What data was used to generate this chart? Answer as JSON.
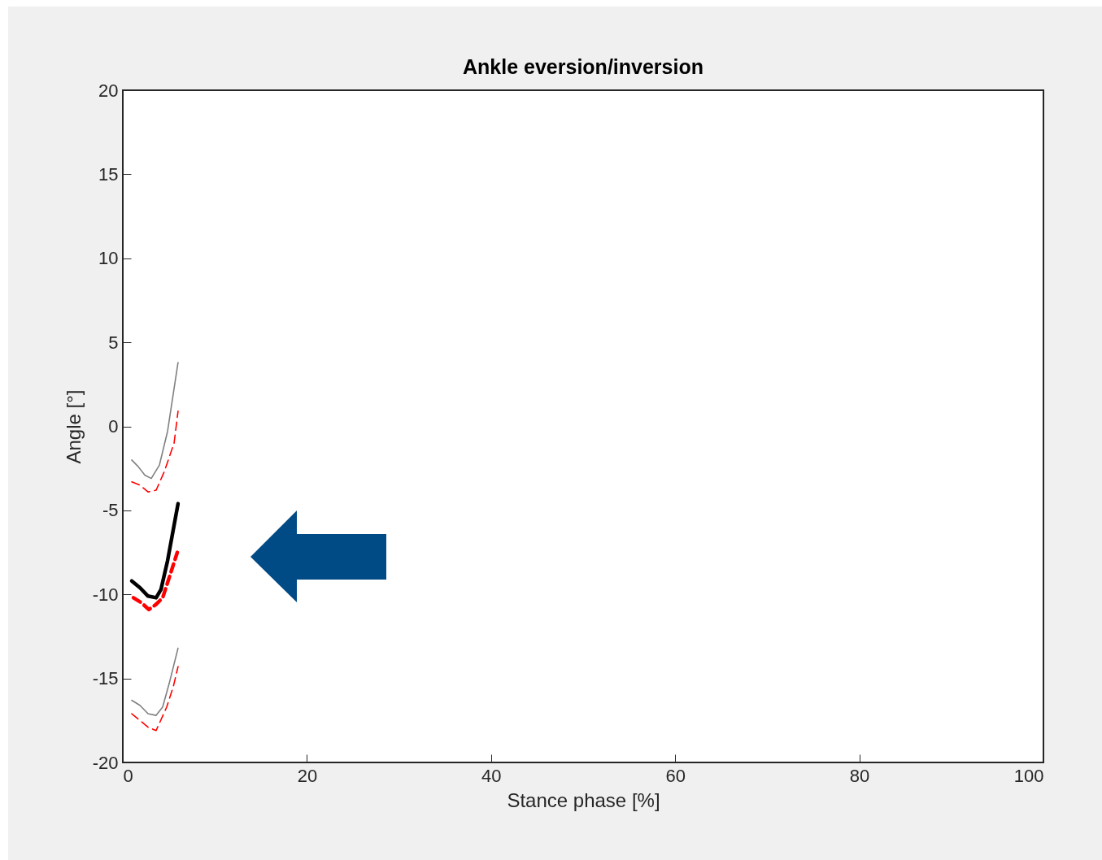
{
  "chart_data": {
    "type": "line",
    "title": "Ankle eversion/inversion",
    "xlabel": "Stance phase [%]",
    "ylabel": "Angle [°]",
    "xlim": [
      0,
      100
    ],
    "xticks": [
      0,
      20,
      40,
      60,
      80,
      100
    ],
    "ylim": [
      -20,
      20
    ],
    "yticks": [
      -20,
      -15,
      -10,
      -5,
      0,
      5,
      10,
      15,
      20
    ],
    "grid": false,
    "marker": "none",
    "series": [
      {
        "color": "#808080",
        "line_style": "solid",
        "x": [
          0.97,
          1.68,
          2.39,
          3.09,
          3.98,
          4.86,
          6.0
        ],
        "values": [
          -2.0,
          -2.4,
          -2.9,
          -3.1,
          -2.3,
          -0.3,
          3.8
        ]
      },
      {
        "color": "#ff0000",
        "line_style": "dashed",
        "x": [
          0.97,
          1.86,
          2.74,
          3.62,
          4.5,
          5.57,
          6.0
        ],
        "values": [
          -3.3,
          -3.5,
          -3.9,
          -3.8,
          -2.7,
          -1.0,
          0.9
        ]
      },
      {
        "color": "#000000",
        "line_style": "solid",
        "x": [
          0.97,
          1.86,
          2.74,
          3.62,
          4.15,
          4.86,
          6.0
        ],
        "values": [
          -9.2,
          -9.6,
          -10.1,
          -10.2,
          -9.7,
          -8.0,
          -4.6
        ]
      },
      {
        "color": "#ff0000",
        "line_style": "dashed",
        "x": [
          1.15,
          2.03,
          2.83,
          3.6,
          4.33,
          5.04,
          5.92
        ],
        "values": [
          -10.2,
          -10.5,
          -10.9,
          -10.6,
          -10.2,
          -9.0,
          -7.5
        ]
      },
      {
        "color": "#808080",
        "line_style": "solid",
        "x": [
          0.97,
          1.86,
          2.74,
          3.62,
          4.33,
          5.04,
          6.0
        ],
        "values": [
          -16.3,
          -16.6,
          -17.1,
          -17.2,
          -16.7,
          -15.3,
          -13.2
        ]
      },
      {
        "color": "#ff0000",
        "line_style": "dashed",
        "x": [
          0.97,
          1.86,
          2.74,
          3.62,
          4.77,
          5.48,
          6.0
        ],
        "values": [
          -17.1,
          -17.5,
          -17.9,
          -18.1,
          -16.7,
          -15.5,
          -14.3
        ]
      }
    ]
  }
}
